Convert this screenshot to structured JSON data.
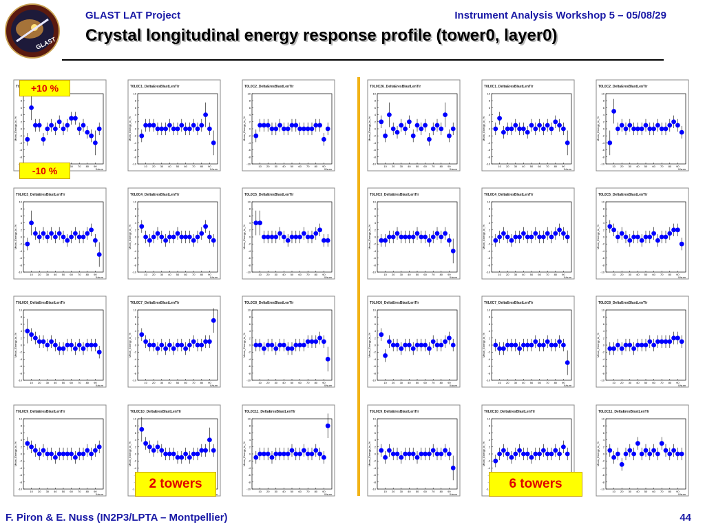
{
  "header": {
    "left": "GLAST LAT Project",
    "right": "Instrument Analysis Workshop 5 – 05/08/29",
    "title": "Crystal longitudinal energy response profile (tower0, layer0)"
  },
  "footer": {
    "authors": "F. Piron & E. Nuss  (IN2P3/LPTA – Montpellier)",
    "page": "44"
  },
  "logo": {
    "text": "GLAST"
  },
  "callouts": {
    "plus": "+10 %",
    "minus": "-10 %",
    "left_group": "2 towers",
    "right_group": "6 towers"
  },
  "colors": {
    "marker": "#0000ff",
    "divider": "#f2b316",
    "callout_bg": "#ffff00",
    "callout_text": "#e00000",
    "header_text": "#1a1aa6"
  },
  "chart_data": {
    "type": "scatter",
    "ylabel": "Mean_Energy_in_%",
    "xlabel": "X/sum",
    "ylim": [
      -10,
      10
    ],
    "xlim": [
      0,
      100
    ],
    "y_ticks": [
      -10,
      -8,
      -6,
      -4,
      -2,
      0,
      2,
      4,
      6,
      8,
      10
    ],
    "x_ticks": [
      10,
      20,
      30,
      40,
      50,
      60,
      70,
      80,
      90
    ],
    "x": [
      5,
      10,
      15,
      20,
      25,
      30,
      35,
      40,
      45,
      50,
      55,
      60,
      65,
      70,
      75,
      80,
      85,
      90,
      95
    ],
    "panels": [
      {
        "title": "T0L0C0_DeltaEresBlastLenTlr",
        "group": "2 towers",
        "y": [
          -3,
          6,
          1,
          1,
          -3,
          0,
          1,
          0,
          2,
          0,
          1,
          3,
          3,
          0,
          1,
          -1,
          -2,
          -4,
          0
        ]
      },
      {
        "title": "T0L0C1_DeltaEresBlastLenTlr",
        "group": "2 towers",
        "y": [
          -2,
          1,
          1,
          1,
          0,
          0,
          0,
          1,
          0,
          0,
          1,
          0,
          0,
          1,
          0,
          1,
          4,
          0,
          -4
        ]
      },
      {
        "title": "T0L0C2_DeltaEresBlastLenTlr",
        "group": "2 towers",
        "y": [
          -2,
          1,
          1,
          1,
          0,
          0,
          1,
          0,
          0,
          1,
          1,
          0,
          0,
          0,
          0,
          1,
          1,
          -3,
          0
        ]
      },
      {
        "title": "T0L0C26_DeltaEresBlastLenTlr",
        "group": "6 towers",
        "y": [
          2,
          -2,
          4,
          0,
          -1,
          1,
          0,
          2,
          -2,
          1,
          0,
          1,
          -3,
          0,
          1,
          0,
          4,
          -2,
          0
        ]
      },
      {
        "title": "T0L0C1_DeltaEresBlastLenTlr",
        "group": "6 towers",
        "y": [
          0,
          3,
          -1,
          0,
          0,
          1,
          0,
          0,
          -1,
          1,
          0,
          1,
          0,
          1,
          0,
          2,
          1,
          0,
          -4
        ]
      },
      {
        "title": "T0L0C2_DeltaEresBlastLenTlr",
        "group": "6 towers",
        "y": [
          -4,
          5,
          0,
          1,
          0,
          1,
          0,
          0,
          0,
          1,
          0,
          0,
          1,
          0,
          0,
          1,
          2,
          1,
          -1
        ]
      },
      {
        "title": "T0L0C3_DeltaEresBlastLenTlr",
        "group": "2 towers",
        "y": [
          -2,
          4,
          1,
          0,
          1,
          0,
          1,
          0,
          1,
          0,
          -1,
          0,
          1,
          0,
          0,
          1,
          2,
          -1,
          -5
        ]
      },
      {
        "title": "T0L0C4_DeltaEresBlastLenTlr",
        "group": "2 towers",
        "y": [
          3,
          0,
          -1,
          0,
          1,
          0,
          -1,
          0,
          0,
          1,
          0,
          0,
          0,
          -1,
          0,
          1,
          3,
          0,
          -1
        ]
      },
      {
        "title": "T0L0C5_DeltaEresBlastLenTlr",
        "group": "2 towers",
        "y": [
          4,
          4,
          0,
          0,
          0,
          0,
          1,
          0,
          -1,
          0,
          0,
          0,
          1,
          0,
          0,
          1,
          2,
          -1,
          -1
        ]
      },
      {
        "title": "T0L0C3_DeltaEresBlastLenTlr",
        "group": "6 towers",
        "y": [
          -1,
          -1,
          0,
          0,
          1,
          0,
          0,
          0,
          0,
          1,
          0,
          0,
          -1,
          0,
          1,
          0,
          1,
          -1,
          -4
        ]
      },
      {
        "title": "T0L0C4_DeltaEresBlastLenTlr",
        "group": "6 towers",
        "y": [
          -1,
          0,
          1,
          0,
          -1,
          0,
          0,
          1,
          0,
          0,
          1,
          0,
          0,
          1,
          0,
          1,
          2,
          1,
          0
        ]
      },
      {
        "title": "T0L0C5_DeltaEresBlastLenTlr",
        "group": "6 towers",
        "y": [
          3,
          2,
          0,
          1,
          0,
          -1,
          0,
          0,
          -1,
          0,
          0,
          1,
          -1,
          0,
          0,
          1,
          2,
          2,
          -2
        ]
      },
      {
        "title": "T0L0C6_DeltaEresBlastLenTlr",
        "group": "2 towers",
        "y": [
          4,
          3,
          2,
          1,
          1,
          0,
          1,
          0,
          -1,
          -1,
          0,
          0,
          -1,
          0,
          -1,
          0,
          0,
          0,
          -2
        ]
      },
      {
        "title": "T0L0C7_DeltaEresBlastLenTlr",
        "group": "2 towers",
        "y": [
          3,
          1,
          0,
          0,
          -1,
          0,
          -1,
          0,
          -1,
          0,
          0,
          -1,
          0,
          1,
          0,
          0,
          1,
          1,
          7
        ]
      },
      {
        "title": "T0L0C8_DeltaEresBlastLenTlr",
        "group": "2 towers",
        "y": [
          0,
          0,
          -1,
          0,
          0,
          -1,
          0,
          0,
          -1,
          -1,
          0,
          0,
          0,
          1,
          1,
          1,
          2,
          1,
          -4
        ]
      },
      {
        "title": "T0L0C6_DeltaEresBlastLenTlr",
        "group": "6 towers",
        "y": [
          3,
          -3,
          1,
          0,
          0,
          -1,
          0,
          0,
          -1,
          0,
          0,
          0,
          -1,
          1,
          0,
          0,
          1,
          2,
          0
        ]
      },
      {
        "title": "T0L0C7_DeltaEresBlastLenTlr",
        "group": "6 towers",
        "y": [
          0,
          -1,
          -1,
          0,
          0,
          0,
          -1,
          0,
          0,
          0,
          1,
          0,
          0,
          1,
          0,
          0,
          1,
          0,
          -5
        ]
      },
      {
        "title": "T0L0C8_DeltaEresBlastLenTlr",
        "group": "6 towers",
        "y": [
          -1,
          -1,
          0,
          -1,
          0,
          0,
          -1,
          0,
          0,
          0,
          1,
          0,
          1,
          1,
          1,
          1,
          2,
          2,
          1
        ]
      },
      {
        "title": "T0L0C9_DeltaEresBlastLenTlr",
        "group": "2 towers",
        "y": [
          3,
          2,
          1,
          0,
          1,
          0,
          0,
          -1,
          0,
          0,
          0,
          0,
          -1,
          0,
          0,
          1,
          0,
          1,
          2
        ]
      },
      {
        "title": "T0L0C10_DeltaEresBlastLenTlr",
        "group": "2 towers",
        "y": [
          7,
          3,
          2,
          1,
          2,
          1,
          0,
          0,
          0,
          -1,
          -1,
          0,
          -1,
          0,
          0,
          1,
          1,
          4,
          1
        ]
      },
      {
        "title": "T0L0C11_DeltaEresBlastLenTlr",
        "group": "2 towers",
        "y": [
          -1,
          0,
          0,
          0,
          -1,
          0,
          0,
          0,
          0,
          1,
          0,
          0,
          1,
          0,
          0,
          1,
          0,
          -1,
          8
        ]
      },
      {
        "title": "T0L0C9_DeltaEresBlastLenTlr",
        "group": "6 towers",
        "y": [
          1,
          -1,
          1,
          0,
          0,
          -1,
          0,
          0,
          0,
          -1,
          0,
          0,
          0,
          1,
          0,
          0,
          1,
          0,
          -4
        ]
      },
      {
        "title": "T0L0C10_DeltaEresBlastLenTlr",
        "group": "6 towers",
        "y": [
          -2,
          0,
          1,
          0,
          -1,
          0,
          1,
          0,
          0,
          -1,
          0,
          0,
          1,
          0,
          0,
          1,
          0,
          2,
          0
        ]
      },
      {
        "title": "T0L0C11_DeltaEresBlastLenTlr",
        "group": "6 towers",
        "y": [
          1,
          -1,
          0,
          -3,
          0,
          1,
          0,
          3,
          0,
          1,
          0,
          1,
          0,
          3,
          1,
          0,
          1,
          0,
          0
        ]
      }
    ]
  }
}
